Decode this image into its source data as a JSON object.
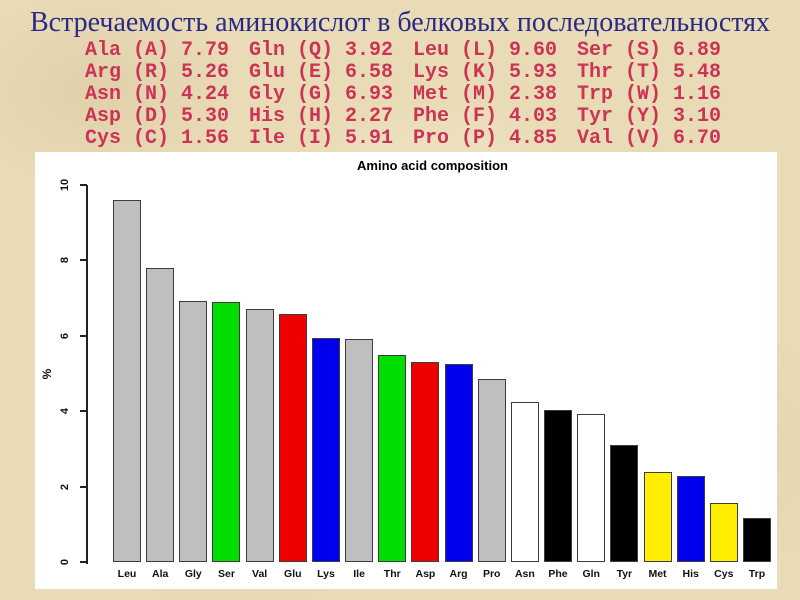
{
  "slide": {
    "title": "Встречаемость аминокислот в белковых последовательностях",
    "background_color": "#e9dbb6",
    "title_color": "#2a2a85"
  },
  "frequency_table": {
    "text_color": "#cc3355",
    "rows": [
      [
        "Ala (A) 7.79",
        "Gln (Q) 3.92",
        "Leu (L) 9.60",
        "Ser (S) 6.89"
      ],
      [
        "Arg (R) 5.26",
        "Glu (E) 6.58",
        "Lys (K) 5.93",
        "Thr (T) 5.48"
      ],
      [
        "Asn (N) 4.24",
        "Gly (G) 6.93",
        "Met (M) 2.38",
        "Trp (W) 1.16"
      ],
      [
        "Asp (D) 5.30",
        "His (H) 2.27",
        "Phe (F) 4.03",
        "Tyr (Y) 3.10"
      ],
      [
        "Cys (C) 1.56",
        "Ile (I) 5.91",
        "Pro (P) 4.85",
        "Val (V) 6.70"
      ]
    ]
  },
  "chart_data": {
    "type": "bar",
    "title": "Amino acid composition",
    "xlabel": "",
    "ylabel": "%",
    "ylim": [
      0,
      10
    ],
    "yticks": [
      0,
      2,
      4,
      6,
      8,
      10
    ],
    "grid": false,
    "legend": "none",
    "categories": [
      "Leu",
      "Ala",
      "Gly",
      "Ser",
      "Val",
      "Glu",
      "Lys",
      "Ile",
      "Thr",
      "Asp",
      "Arg",
      "Pro",
      "Asn",
      "Phe",
      "Gln",
      "Tyr",
      "Met",
      "His",
      "Cys",
      "Trp"
    ],
    "values": [
      9.6,
      7.79,
      6.93,
      6.89,
      6.7,
      6.58,
      5.93,
      5.91,
      5.48,
      5.3,
      5.26,
      4.85,
      4.24,
      4.03,
      3.92,
      3.1,
      2.38,
      2.27,
      1.56,
      1.16
    ],
    "bar_colors": [
      "#bfbfbf",
      "#bfbfbf",
      "#bfbfbf",
      "#00dd00",
      "#bfbfbf",
      "#ee0000",
      "#0000ee",
      "#bfbfbf",
      "#00dd00",
      "#ee0000",
      "#0000ee",
      "#bfbfbf",
      "#ffffff",
      "#000000",
      "#ffffff",
      "#000000",
      "#ffee00",
      "#0000ee",
      "#ffee00",
      "#000000"
    ]
  }
}
